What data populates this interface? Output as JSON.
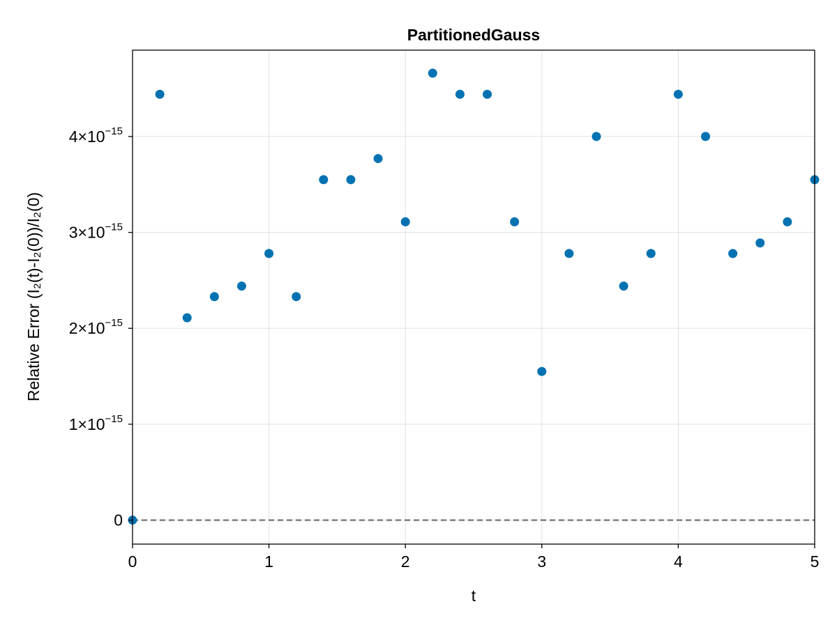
{
  "chart_data": {
    "type": "scatter",
    "title": "PartitionedGauss",
    "xlabel": "t",
    "ylabel": "Relative Error (I₂(t)-I₂(0))/I₂(0)",
    "xlim": [
      0,
      5
    ],
    "ylim": [
      -2.5e-16,
      4.9e-15
    ],
    "x_ticks": [
      {
        "value": 0,
        "label": "0"
      },
      {
        "value": 1,
        "label": "1"
      },
      {
        "value": 2,
        "label": "2"
      },
      {
        "value": 3,
        "label": "3"
      },
      {
        "value": 4,
        "label": "4"
      },
      {
        "value": 5,
        "label": "5"
      }
    ],
    "y_ticks": [
      {
        "value": 0,
        "mantissa": "0",
        "exponent": ""
      },
      {
        "value": 1e-15,
        "mantissa": "1×10",
        "exponent": "−15"
      },
      {
        "value": 2e-15,
        "mantissa": "2×10",
        "exponent": "−15"
      },
      {
        "value": 3e-15,
        "mantissa": "3×10",
        "exponent": "−15"
      },
      {
        "value": 4e-15,
        "mantissa": "4×10",
        "exponent": "−15"
      }
    ],
    "grid": true,
    "reference_line": {
      "y": 0,
      "style": "dashed",
      "color": "#7f7f7f"
    },
    "series": [
      {
        "color": "#0072b2",
        "points": [
          {
            "x": 0.0,
            "y": 0.0
          },
          {
            "x": 0.2,
            "y": 4.44e-15
          },
          {
            "x": 0.4,
            "y": 2.11e-15
          },
          {
            "x": 0.6,
            "y": 2.33e-15
          },
          {
            "x": 0.8,
            "y": 2.44e-15
          },
          {
            "x": 1.0,
            "y": 2.78e-15
          },
          {
            "x": 1.2,
            "y": 2.33e-15
          },
          {
            "x": 1.4,
            "y": 3.55e-15
          },
          {
            "x": 1.6,
            "y": 3.55e-15
          },
          {
            "x": 1.8,
            "y": 3.77e-15
          },
          {
            "x": 2.0,
            "y": 3.11e-15
          },
          {
            "x": 2.2,
            "y": 4.66e-15
          },
          {
            "x": 2.4,
            "y": 4.44e-15
          },
          {
            "x": 2.6,
            "y": 4.44e-15
          },
          {
            "x": 2.8,
            "y": 3.11e-15
          },
          {
            "x": 3.0,
            "y": 1.55e-15
          },
          {
            "x": 3.2,
            "y": 2.78e-15
          },
          {
            "x": 3.4,
            "y": 4e-15
          },
          {
            "x": 3.6,
            "y": 2.44e-15
          },
          {
            "x": 3.8,
            "y": 2.78e-15
          },
          {
            "x": 4.0,
            "y": 4.44e-15
          },
          {
            "x": 4.2,
            "y": 4e-15
          },
          {
            "x": 4.4,
            "y": 2.78e-15
          },
          {
            "x": 4.6,
            "y": 2.89e-15
          },
          {
            "x": 4.8,
            "y": 3.11e-15
          },
          {
            "x": 5.0,
            "y": 3.55e-15
          }
        ]
      }
    ]
  }
}
